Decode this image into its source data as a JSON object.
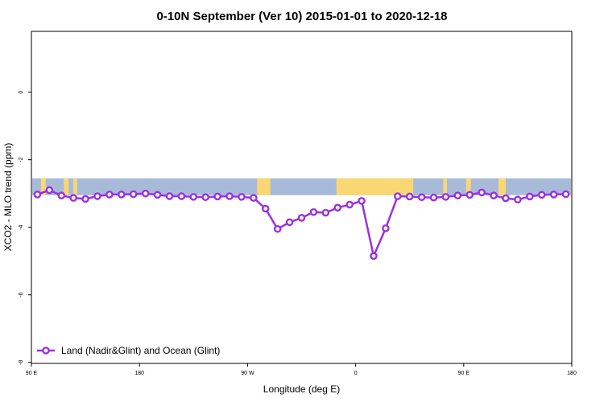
{
  "chart_data": {
    "type": "line",
    "title": "0-10N September (Ver 10)   2015-01-01 to 2020-12-18",
    "xlabel": "Longitude (deg E)",
    "ylabel": "XCO2 - MLO trend (ppm)",
    "xlim": [
      90,
      540
    ],
    "ylim": [
      -8,
      2
    ],
    "x_ticks": [
      90,
      180,
      270,
      360,
      450,
      540
    ],
    "x_tick_labels": [
      "90 E",
      "180",
      "90 W",
      "0",
      "90 E",
      "180"
    ],
    "y_ticks": [
      0,
      -2,
      -4,
      -6,
      -8
    ],
    "y_tick_labels": [
      "0",
      "-2",
      "-4",
      "-6",
      "-8"
    ],
    "map_band": {
      "y_top": -2.55,
      "y_bottom": -3.05,
      "ocean_color": "#a7bbd9",
      "land_color": "#fbd774"
    },
    "land_segments": [
      [
        98,
        102
      ],
      [
        117,
        121
      ],
      [
        125,
        128
      ],
      [
        278,
        289
      ],
      [
        344,
        408
      ],
      [
        433,
        436
      ],
      [
        452,
        456
      ],
      [
        479,
        485
      ]
    ],
    "legend": {
      "position": "bottom-left",
      "entries": [
        "Land (Nadir&Glint) and Ocean (Glint)"
      ]
    },
    "series": [
      {
        "name": "Land (Nadir&Glint) and Ocean (Glint)",
        "color": "#9b30e0",
        "x": [
          95,
          105,
          115,
          125,
          135,
          145,
          155,
          165,
          175,
          185,
          195,
          205,
          215,
          225,
          235,
          245,
          255,
          265,
          275,
          285,
          295,
          305,
          315,
          325,
          335,
          345,
          355,
          365,
          375,
          385,
          395,
          405,
          415,
          425,
          435,
          445,
          455,
          465,
          475,
          485,
          495,
          505,
          515,
          525,
          535
        ],
        "y": [
          -3.03,
          -2.9,
          -3.06,
          -3.13,
          -3.16,
          -3.08,
          -3.03,
          -3.03,
          -3.02,
          -3.0,
          -3.04,
          -3.08,
          -3.08,
          -3.1,
          -3.11,
          -3.09,
          -3.08,
          -3.1,
          -3.13,
          -3.45,
          -4.05,
          -3.85,
          -3.72,
          -3.55,
          -3.57,
          -3.42,
          -3.33,
          -3.22,
          -4.85,
          -4.03,
          -3.08,
          -3.09,
          -3.11,
          -3.12,
          -3.1,
          -3.06,
          -3.04,
          -2.97,
          -3.06,
          -3.14,
          -3.18,
          -3.09,
          -3.04,
          -3.03,
          -3.02
        ]
      }
    ]
  }
}
